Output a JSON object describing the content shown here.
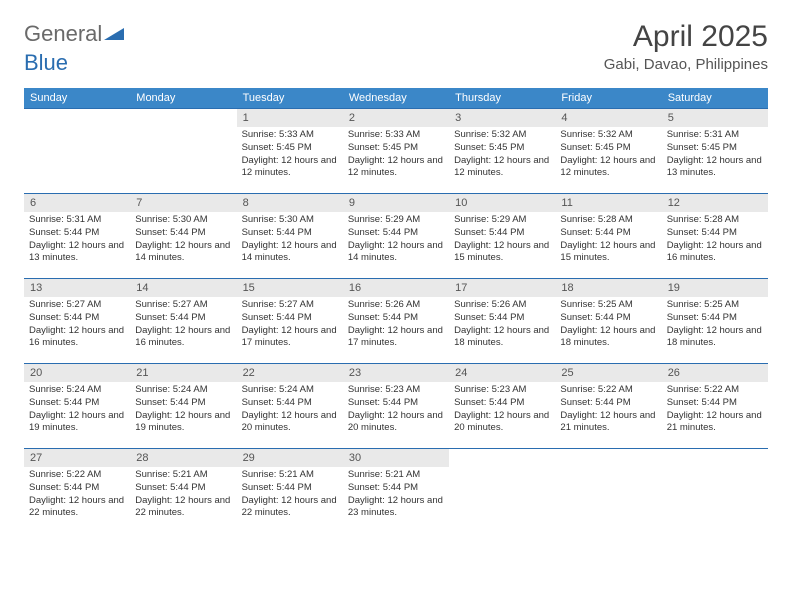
{
  "brand": {
    "name_part1": "General",
    "name_part2": "Blue",
    "shape_color": "#2a6db0"
  },
  "title": "April 2025",
  "location": "Gabi, Davao, Philippines",
  "weekdays": [
    "Sunday",
    "Monday",
    "Tuesday",
    "Wednesday",
    "Thursday",
    "Friday",
    "Saturday"
  ],
  "colors": {
    "header_bg": "#3b87c8",
    "header_text": "#ffffff",
    "daynum_bg": "#e9e9e9",
    "row_border": "#2a6db0",
    "body_text": "#333333",
    "title_text": "#444444"
  },
  "weeks": [
    [
      {
        "n": "",
        "sunrise": "",
        "sunset": "",
        "daylight": ""
      },
      {
        "n": "",
        "sunrise": "",
        "sunset": "",
        "daylight": ""
      },
      {
        "n": "1",
        "sunrise": "Sunrise: 5:33 AM",
        "sunset": "Sunset: 5:45 PM",
        "daylight": "Daylight: 12 hours and 12 minutes."
      },
      {
        "n": "2",
        "sunrise": "Sunrise: 5:33 AM",
        "sunset": "Sunset: 5:45 PM",
        "daylight": "Daylight: 12 hours and 12 minutes."
      },
      {
        "n": "3",
        "sunrise": "Sunrise: 5:32 AM",
        "sunset": "Sunset: 5:45 PM",
        "daylight": "Daylight: 12 hours and 12 minutes."
      },
      {
        "n": "4",
        "sunrise": "Sunrise: 5:32 AM",
        "sunset": "Sunset: 5:45 PM",
        "daylight": "Daylight: 12 hours and 12 minutes."
      },
      {
        "n": "5",
        "sunrise": "Sunrise: 5:31 AM",
        "sunset": "Sunset: 5:45 PM",
        "daylight": "Daylight: 12 hours and 13 minutes."
      }
    ],
    [
      {
        "n": "6",
        "sunrise": "Sunrise: 5:31 AM",
        "sunset": "Sunset: 5:44 PM",
        "daylight": "Daylight: 12 hours and 13 minutes."
      },
      {
        "n": "7",
        "sunrise": "Sunrise: 5:30 AM",
        "sunset": "Sunset: 5:44 PM",
        "daylight": "Daylight: 12 hours and 14 minutes."
      },
      {
        "n": "8",
        "sunrise": "Sunrise: 5:30 AM",
        "sunset": "Sunset: 5:44 PM",
        "daylight": "Daylight: 12 hours and 14 minutes."
      },
      {
        "n": "9",
        "sunrise": "Sunrise: 5:29 AM",
        "sunset": "Sunset: 5:44 PM",
        "daylight": "Daylight: 12 hours and 14 minutes."
      },
      {
        "n": "10",
        "sunrise": "Sunrise: 5:29 AM",
        "sunset": "Sunset: 5:44 PM",
        "daylight": "Daylight: 12 hours and 15 minutes."
      },
      {
        "n": "11",
        "sunrise": "Sunrise: 5:28 AM",
        "sunset": "Sunset: 5:44 PM",
        "daylight": "Daylight: 12 hours and 15 minutes."
      },
      {
        "n": "12",
        "sunrise": "Sunrise: 5:28 AM",
        "sunset": "Sunset: 5:44 PM",
        "daylight": "Daylight: 12 hours and 16 minutes."
      }
    ],
    [
      {
        "n": "13",
        "sunrise": "Sunrise: 5:27 AM",
        "sunset": "Sunset: 5:44 PM",
        "daylight": "Daylight: 12 hours and 16 minutes."
      },
      {
        "n": "14",
        "sunrise": "Sunrise: 5:27 AM",
        "sunset": "Sunset: 5:44 PM",
        "daylight": "Daylight: 12 hours and 16 minutes."
      },
      {
        "n": "15",
        "sunrise": "Sunrise: 5:27 AM",
        "sunset": "Sunset: 5:44 PM",
        "daylight": "Daylight: 12 hours and 17 minutes."
      },
      {
        "n": "16",
        "sunrise": "Sunrise: 5:26 AM",
        "sunset": "Sunset: 5:44 PM",
        "daylight": "Daylight: 12 hours and 17 minutes."
      },
      {
        "n": "17",
        "sunrise": "Sunrise: 5:26 AM",
        "sunset": "Sunset: 5:44 PM",
        "daylight": "Daylight: 12 hours and 18 minutes."
      },
      {
        "n": "18",
        "sunrise": "Sunrise: 5:25 AM",
        "sunset": "Sunset: 5:44 PM",
        "daylight": "Daylight: 12 hours and 18 minutes."
      },
      {
        "n": "19",
        "sunrise": "Sunrise: 5:25 AM",
        "sunset": "Sunset: 5:44 PM",
        "daylight": "Daylight: 12 hours and 18 minutes."
      }
    ],
    [
      {
        "n": "20",
        "sunrise": "Sunrise: 5:24 AM",
        "sunset": "Sunset: 5:44 PM",
        "daylight": "Daylight: 12 hours and 19 minutes."
      },
      {
        "n": "21",
        "sunrise": "Sunrise: 5:24 AM",
        "sunset": "Sunset: 5:44 PM",
        "daylight": "Daylight: 12 hours and 19 minutes."
      },
      {
        "n": "22",
        "sunrise": "Sunrise: 5:24 AM",
        "sunset": "Sunset: 5:44 PM",
        "daylight": "Daylight: 12 hours and 20 minutes."
      },
      {
        "n": "23",
        "sunrise": "Sunrise: 5:23 AM",
        "sunset": "Sunset: 5:44 PM",
        "daylight": "Daylight: 12 hours and 20 minutes."
      },
      {
        "n": "24",
        "sunrise": "Sunrise: 5:23 AM",
        "sunset": "Sunset: 5:44 PM",
        "daylight": "Daylight: 12 hours and 20 minutes."
      },
      {
        "n": "25",
        "sunrise": "Sunrise: 5:22 AM",
        "sunset": "Sunset: 5:44 PM",
        "daylight": "Daylight: 12 hours and 21 minutes."
      },
      {
        "n": "26",
        "sunrise": "Sunrise: 5:22 AM",
        "sunset": "Sunset: 5:44 PM",
        "daylight": "Daylight: 12 hours and 21 minutes."
      }
    ],
    [
      {
        "n": "27",
        "sunrise": "Sunrise: 5:22 AM",
        "sunset": "Sunset: 5:44 PM",
        "daylight": "Daylight: 12 hours and 22 minutes."
      },
      {
        "n": "28",
        "sunrise": "Sunrise: 5:21 AM",
        "sunset": "Sunset: 5:44 PM",
        "daylight": "Daylight: 12 hours and 22 minutes."
      },
      {
        "n": "29",
        "sunrise": "Sunrise: 5:21 AM",
        "sunset": "Sunset: 5:44 PM",
        "daylight": "Daylight: 12 hours and 22 minutes."
      },
      {
        "n": "30",
        "sunrise": "Sunrise: 5:21 AM",
        "sunset": "Sunset: 5:44 PM",
        "daylight": "Daylight: 12 hours and 23 minutes."
      },
      {
        "n": "",
        "sunrise": "",
        "sunset": "",
        "daylight": ""
      },
      {
        "n": "",
        "sunrise": "",
        "sunset": "",
        "daylight": ""
      },
      {
        "n": "",
        "sunrise": "",
        "sunset": "",
        "daylight": ""
      }
    ]
  ]
}
